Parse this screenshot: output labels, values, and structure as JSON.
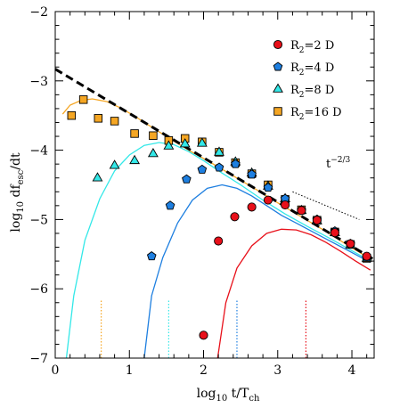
{
  "chart_data": {
    "type": "scatter",
    "xlabel_main": "log",
    "xlabel_sub": "10",
    "xlabel_rest": " t/T",
    "xlabel_rest_sub": "ch",
    "ylabel_main": "log",
    "ylabel_sub": "10",
    "ylabel_rest": " df",
    "ylabel_rest_sub": "esc",
    "ylabel_tail": "/dt",
    "xlim": [
      0,
      4.3
    ],
    "ylim": [
      -7,
      -2
    ],
    "xticks": [
      0,
      1,
      2,
      3,
      4
    ],
    "yticks": [
      -7,
      -6,
      -5,
      -4,
      -3,
      -2
    ],
    "xtick_labels": [
      "0",
      "1",
      "2",
      "3",
      "4"
    ],
    "ytick_labels": [
      "−7",
      "−6",
      "−5",
      "−4",
      "−3",
      "−2"
    ],
    "legend_position": "top-right",
    "annotation": {
      "base": "t",
      "exponent": "−2/3",
      "slope_line": [
        [
          3.2,
          -4.6
        ],
        [
          4.1,
          -5.0
        ]
      ]
    },
    "series": [
      {
        "name": "R2=2 D",
        "legend_main": "R",
        "legend_sub": "2",
        "legend_rest": "=2 D",
        "marker": "circle",
        "color": "#e8101a",
        "points": [
          [
            2.0,
            -6.67
          ],
          [
            2.2,
            -5.31
          ],
          [
            2.42,
            -4.96
          ],
          [
            2.65,
            -4.82
          ],
          [
            2.87,
            -4.72
          ],
          [
            3.1,
            -4.79
          ],
          [
            3.32,
            -4.87
          ],
          [
            3.53,
            -5.01
          ],
          [
            3.77,
            -5.19
          ],
          [
            3.98,
            -5.35
          ],
          [
            4.2,
            -5.53
          ]
        ],
        "curve": [
          [
            2.19,
            -7.0
          ],
          [
            2.3,
            -6.2
          ],
          [
            2.45,
            -5.7
          ],
          [
            2.65,
            -5.38
          ],
          [
            2.85,
            -5.2
          ],
          [
            3.05,
            -5.14
          ],
          [
            3.25,
            -5.15
          ],
          [
            3.45,
            -5.22
          ],
          [
            3.65,
            -5.33
          ],
          [
            3.85,
            -5.46
          ],
          [
            4.05,
            -5.6
          ],
          [
            4.25,
            -5.73
          ]
        ],
        "vline_x": 3.38
      },
      {
        "name": "R2=4 D",
        "legend_main": "R",
        "legend_sub": "2",
        "legend_rest": "=4 D",
        "marker": "pentagon",
        "color": "#1e7fe0",
        "points": [
          [
            1.3,
            -5.53
          ],
          [
            1.55,
            -4.8
          ],
          [
            1.77,
            -4.42
          ],
          [
            1.98,
            -4.28
          ],
          [
            2.21,
            -4.25
          ],
          [
            2.43,
            -4.2
          ],
          [
            2.65,
            -4.35
          ],
          [
            2.87,
            -4.54
          ],
          [
            3.1,
            -4.7
          ],
          [
            3.32,
            -4.87
          ],
          [
            3.53,
            -5.0
          ],
          [
            3.77,
            -5.17
          ],
          [
            3.98,
            -5.35
          ],
          [
            4.2,
            -5.55
          ]
        ],
        "curve": [
          [
            1.2,
            -7.0
          ],
          [
            1.3,
            -6.1
          ],
          [
            1.45,
            -5.55
          ],
          [
            1.65,
            -5.05
          ],
          [
            1.85,
            -4.72
          ],
          [
            2.05,
            -4.55
          ],
          [
            2.25,
            -4.5
          ],
          [
            2.45,
            -4.55
          ],
          [
            2.65,
            -4.66
          ],
          [
            2.85,
            -4.8
          ],
          [
            3.05,
            -4.94
          ],
          [
            3.3,
            -5.08
          ],
          [
            3.6,
            -5.25
          ],
          [
            3.9,
            -5.42
          ],
          [
            4.25,
            -5.62
          ]
        ],
        "vline_x": 2.45
      },
      {
        "name": "R2=8 D",
        "legend_main": "R",
        "legend_sub": "2",
        "legend_rest": "=8 D",
        "marker": "triangle",
        "color": "#33e8e8",
        "points": [
          [
            0.57,
            -4.4
          ],
          [
            0.8,
            -4.22
          ],
          [
            1.07,
            -4.15
          ],
          [
            1.32,
            -4.05
          ],
          [
            1.53,
            -3.94
          ],
          [
            1.75,
            -3.91
          ],
          [
            1.98,
            -3.9
          ],
          [
            2.21,
            -4.03
          ],
          [
            2.43,
            -4.17
          ],
          [
            2.65,
            -4.33
          ],
          [
            2.87,
            -4.52
          ],
          [
            3.1,
            -4.7
          ],
          [
            3.32,
            -4.87
          ],
          [
            3.53,
            -5.02
          ],
          [
            3.77,
            -5.19
          ],
          [
            3.98,
            -5.37
          ],
          [
            4.2,
            -5.56
          ]
        ],
        "curve": [
          [
            0.15,
            -7.0
          ],
          [
            0.25,
            -6.1
          ],
          [
            0.4,
            -5.3
          ],
          [
            0.6,
            -4.7
          ],
          [
            0.8,
            -4.3
          ],
          [
            1.0,
            -4.07
          ],
          [
            1.2,
            -3.93
          ],
          [
            1.4,
            -3.89
          ],
          [
            1.6,
            -3.92
          ],
          [
            1.8,
            -4.02
          ],
          [
            2.0,
            -4.15
          ],
          [
            2.25,
            -4.33
          ],
          [
            2.5,
            -4.5
          ],
          [
            2.8,
            -4.72
          ],
          [
            3.1,
            -4.92
          ],
          [
            3.4,
            -5.1
          ],
          [
            3.7,
            -5.27
          ],
          [
            4.0,
            -5.45
          ],
          [
            4.25,
            -5.6
          ]
        ],
        "vline_x": 1.53
      },
      {
        "name": "R2=16 D",
        "legend_main": "R",
        "legend_sub": "2",
        "legend_rest": "=16 D",
        "marker": "square",
        "color": "#f5a623",
        "points": [
          [
            0.22,
            -3.5
          ],
          [
            0.38,
            -3.27
          ],
          [
            0.58,
            -3.54
          ],
          [
            0.8,
            -3.58
          ],
          [
            1.07,
            -3.76
          ],
          [
            1.32,
            -3.79
          ],
          [
            1.53,
            -3.86
          ],
          [
            1.75,
            -3.83
          ],
          [
            1.98,
            -3.88
          ],
          [
            2.21,
            -4.03
          ],
          [
            2.43,
            -4.18
          ],
          [
            2.65,
            -4.34
          ],
          [
            2.87,
            -4.5
          ],
          [
            3.1,
            -4.71
          ],
          [
            3.32,
            -4.86
          ],
          [
            3.53,
            -5.01
          ],
          [
            3.77,
            -5.18
          ],
          [
            3.98,
            -5.36
          ],
          [
            4.2,
            -5.56
          ]
        ],
        "curve": [
          [
            0.1,
            -3.48
          ],
          [
            0.2,
            -3.35
          ],
          [
            0.35,
            -3.28
          ],
          [
            0.5,
            -3.26
          ],
          [
            0.7,
            -3.3
          ],
          [
            0.9,
            -3.4
          ],
          [
            1.1,
            -3.53
          ],
          [
            1.35,
            -3.7
          ],
          [
            1.6,
            -3.87
          ],
          [
            1.85,
            -4.03
          ],
          [
            2.1,
            -4.18
          ],
          [
            2.4,
            -4.37
          ],
          [
            2.7,
            -4.56
          ],
          [
            3.0,
            -4.76
          ],
          [
            3.3,
            -4.95
          ],
          [
            3.6,
            -5.14
          ],
          [
            3.9,
            -5.34
          ],
          [
            4.25,
            -5.57
          ]
        ],
        "vline_x": 0.62
      }
    ],
    "power_law_line": [
      [
        0.0,
        -2.83
      ],
      [
        4.3,
        -5.58
      ]
    ],
    "vline_range": [
      -7.0,
      -6.15
    ]
  }
}
